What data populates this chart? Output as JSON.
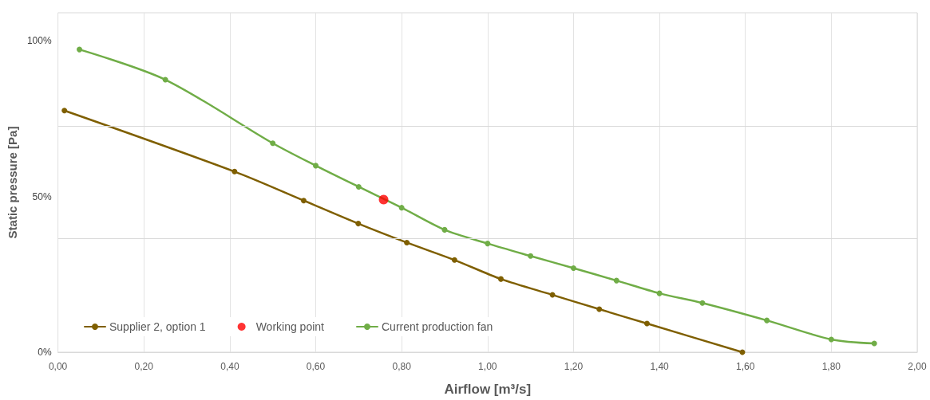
{
  "chart_data": {
    "type": "line",
    "xlabel": "Airflow [m³/s]",
    "ylabel": "Static pressure [Pa]",
    "xlim": [
      0,
      2
    ],
    "xticks": [
      {
        "value": 0,
        "label": "0,00"
      },
      {
        "value": 0.2,
        "label": "0,20"
      },
      {
        "value": 0.4,
        "label": "0,40"
      },
      {
        "value": 0.6,
        "label": "0,60"
      },
      {
        "value": 0.8,
        "label": "0,80"
      },
      {
        "value": 1.0,
        "label": "1,00"
      },
      {
        "value": 1.2,
        "label": "1,20"
      },
      {
        "value": 1.4,
        "label": "1,40"
      },
      {
        "value": 1.6,
        "label": "1,60"
      },
      {
        "value": 1.8,
        "label": "1,80"
      },
      {
        "value": 2.0,
        "label": "2,00"
      }
    ],
    "ylim": [
      0,
      109
    ],
    "yticks": [
      {
        "value": 0,
        "label": "0%"
      },
      {
        "value": 50,
        "label": "50%"
      },
      {
        "value": 100,
        "label": "100%"
      }
    ],
    "grid": "x",
    "legend": "bottom left",
    "marker": "circle",
    "line_style": "solid",
    "ref_lines": [
      {
        "axis": "y",
        "value": 36.5,
        "label": null,
        "color": "#d9d9d9"
      },
      {
        "axis": "y",
        "value": 72.7,
        "label": null,
        "color": "#d9d9d9"
      }
    ],
    "series": [
      {
        "name": "Supplier 2, option 1",
        "color": "#7f5f00",
        "x": [
          0.015,
          0.411,
          0.572,
          0.699,
          0.812,
          0.923,
          1.031,
          1.151,
          1.26,
          1.371,
          1.593
        ],
        "values": [
          77.6,
          58.0,
          48.7,
          41.3,
          35.2,
          29.6,
          23.5,
          18.4,
          13.8,
          9.2,
          0
        ]
      },
      {
        "name": "Working point",
        "type": "scatter",
        "color": "#ff0000",
        "x": [
          0.758
        ],
        "values": [
          49.0
        ]
      },
      {
        "name": "Current production fan",
        "color": "#70ad47",
        "x": [
          0.05,
          0.25,
          0.5,
          0.6,
          0.7,
          0.8,
          0.9,
          1.0,
          1.1,
          1.2,
          1.3,
          1.4,
          1.5,
          1.65,
          1.8,
          1.9
        ],
        "values": [
          97.2,
          87.5,
          67.1,
          59.9,
          53.1,
          46.4,
          39.3,
          34.9,
          30.9,
          27.0,
          23.0,
          18.9,
          15.8,
          10.2,
          4.1,
          2.8
        ]
      }
    ]
  }
}
